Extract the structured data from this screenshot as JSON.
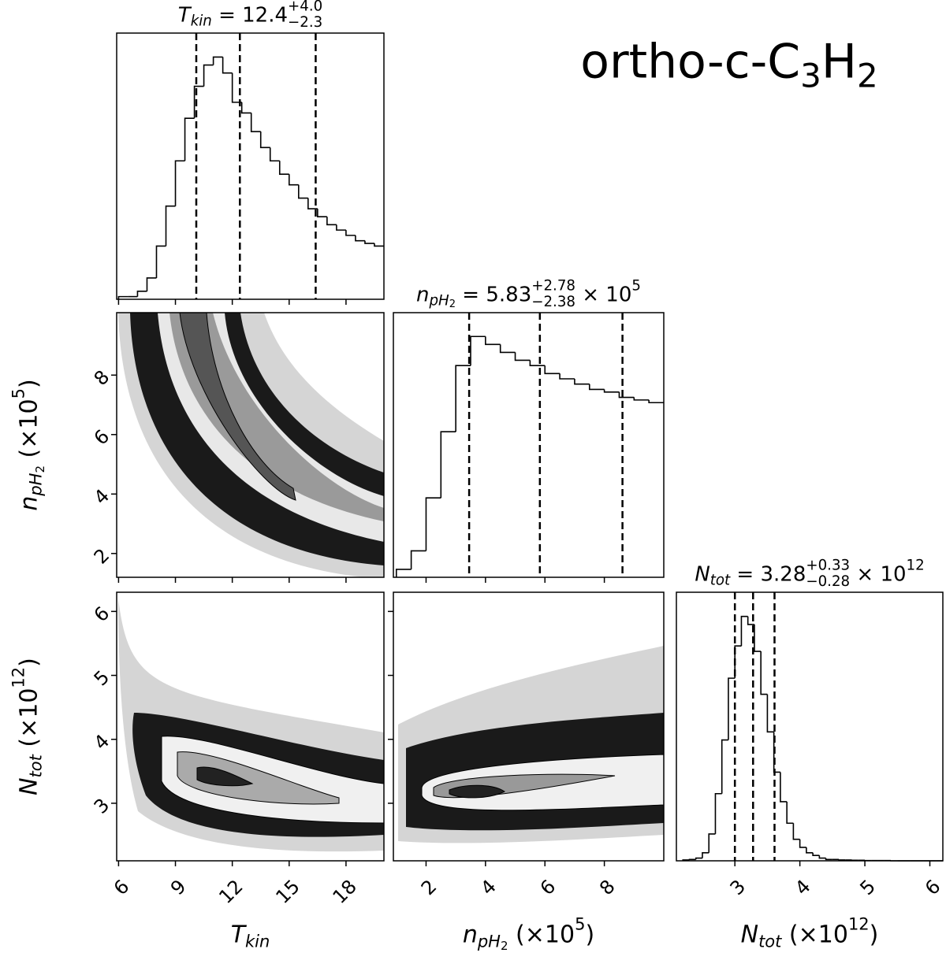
{
  "chart_data": {
    "type": "corner",
    "color": "#000000",
    "title": [
      {
        "t": "ortho-c-C",
        "s": "n"
      },
      {
        "t": "3",
        "s": "sub"
      },
      {
        "t": "H",
        "s": "n"
      },
      {
        "t": "2",
        "s": "sub"
      }
    ],
    "params": [
      {
        "label": [
          {
            "t": "T",
            "s": "i"
          },
          {
            "t": "kin",
            "s": "subi"
          }
        ],
        "title": [
          {
            "t": "T",
            "s": "i"
          },
          {
            "t": "kin",
            "s": "subi"
          },
          {
            "t": " = 12.4",
            "s": "n"
          },
          {
            "t": "+4.0",
            "s": "sup"
          },
          {
            "t": "−2.3",
            "s": "stack"
          }
        ],
        "lim": [
          5.9,
          20
        ],
        "ticks": [
          6,
          9,
          12,
          15,
          18
        ],
        "bins": [
          6,
          6.5,
          7,
          7.5,
          8,
          8.5,
          9,
          9.5,
          10,
          10.5,
          11,
          11.5,
          12,
          12.5,
          13,
          13.5,
          14,
          14.5,
          15,
          15.5,
          16,
          16.5,
          17,
          17.5,
          18,
          18.5,
          19,
          19.5,
          20
        ],
        "counts": [
          1,
          1,
          3,
          8,
          20,
          35,
          52,
          68,
          80,
          88,
          91,
          85,
          74,
          70,
          63,
          57,
          52,
          47,
          43,
          38,
          34,
          31,
          28,
          26,
          24,
          22,
          21,
          20
        ],
        "ylim": [
          0,
          100
        ],
        "quantiles": [
          10.1,
          12.4,
          16.4
        ]
      },
      {
        "label": [
          {
            "t": "n",
            "s": "i"
          },
          {
            "t": "pH",
            "s": "subi"
          },
          {
            "t": "2",
            "s": "subsub"
          },
          {
            "t": " (×10",
            "s": "n"
          },
          {
            "t": "5",
            "s": "sup"
          },
          {
            "t": ")",
            "s": "n"
          }
        ],
        "title": [
          {
            "t": "n",
            "s": "i"
          },
          {
            "t": "pH",
            "s": "subi"
          },
          {
            "t": "2",
            "s": "subsub"
          },
          {
            "t": " = 5.83",
            "s": "n"
          },
          {
            "t": "+2.78",
            "s": "sup"
          },
          {
            "t": "−2.38",
            "s": "stack"
          },
          {
            "t": " × 10",
            "s": "n"
          },
          {
            "t": "5",
            "s": "sup"
          }
        ],
        "lim": [
          0.9,
          10
        ],
        "ylim2d": [
          1.2,
          10.1
        ],
        "ticks": [
          2,
          4,
          6,
          8
        ],
        "bins": [
          1,
          1.5,
          2,
          2.5,
          3,
          3.5,
          4,
          4.5,
          5,
          5.5,
          6,
          6.5,
          7,
          7.5,
          8,
          8.5,
          9,
          9.5,
          10
        ],
        "counts": [
          3,
          10,
          30,
          55,
          80,
          91,
          88,
          85,
          82,
          80,
          77,
          75,
          73,
          71,
          70,
          68,
          67,
          66
        ],
        "ylim": [
          0,
          100
        ],
        "quantiles": [
          3.45,
          5.83,
          8.61
        ]
      },
      {
        "label": [
          {
            "t": "N",
            "s": "i"
          },
          {
            "t": "tot",
            "s": "subi"
          },
          {
            "t": " (×10",
            "s": "n"
          },
          {
            "t": "12",
            "s": "sup"
          },
          {
            "t": ")",
            "s": "n"
          }
        ],
        "title": [
          {
            "t": "N",
            "s": "i"
          },
          {
            "t": "tot",
            "s": "subi"
          },
          {
            "t": " = 3.28",
            "s": "n"
          },
          {
            "t": "+0.33",
            "s": "sup"
          },
          {
            "t": "−0.28",
            "s": "stack"
          },
          {
            "t": " × 10",
            "s": "n"
          },
          {
            "t": "12",
            "s": "sup"
          }
        ],
        "lim": [
          2.1,
          6.2
        ],
        "ylim2d": [
          2.1,
          6.3
        ],
        "ticks": [
          3,
          4,
          5,
          6
        ],
        "bins": [
          2.2,
          2.3,
          2.4,
          2.5,
          2.6,
          2.7,
          2.8,
          2.9,
          3.0,
          3.1,
          3.2,
          3.3,
          3.4,
          3.5,
          3.6,
          3.7,
          3.8,
          3.9,
          4.0,
          4.1,
          4.2,
          4.3,
          4.4,
          4.5,
          4.6,
          4.7,
          4.8,
          4.9,
          5.0,
          5.1,
          5.2,
          5.3,
          5.4,
          5.5,
          5.6,
          5.7,
          5.8,
          5.9,
          6.0,
          6.1,
          6.2
        ],
        "counts": [
          0.3,
          0.5,
          1,
          3,
          10,
          25,
          45,
          68,
          80,
          91,
          88,
          78,
          62,
          48,
          33,
          22,
          14,
          8,
          5,
          3,
          2,
          1,
          0.5,
          0.5,
          0.3,
          0.3,
          0.2,
          0.2,
          0.1,
          0.1,
          0.1,
          0.1,
          0,
          0,
          0,
          0,
          0,
          0,
          0,
          0
        ],
        "ylim": [
          0,
          100
        ],
        "quantiles": [
          3.0,
          3.28,
          3.61
        ]
      }
    ]
  }
}
